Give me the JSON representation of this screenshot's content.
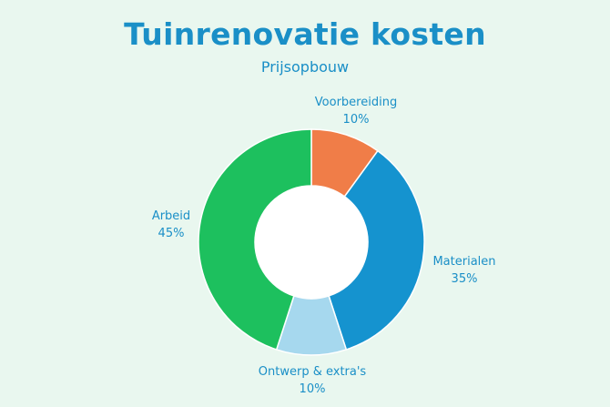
{
  "title": "Tuinrenovatie kosten",
  "subtitle": "Prijsopbouw",
  "chart_data": {
    "type": "pie",
    "title": "Tuinrenovatie kosten",
    "subtitle": "Prijsopbouw",
    "donut": true,
    "slices": [
      {
        "label": "Voorbereiding",
        "value": 10,
        "value_label": "10%",
        "color": "#f07d48"
      },
      {
        "label": "Materialen",
        "value": 35,
        "value_label": "35%",
        "color": "#1593cf"
      },
      {
        "label": "Ontwerp & extra's",
        "value": 10,
        "value_label": "10%",
        "color": "#a6d8ee"
      },
      {
        "label": "Arbeid",
        "value": 45,
        "value_label": "45%",
        "color": "#1dc05e"
      }
    ]
  }
}
